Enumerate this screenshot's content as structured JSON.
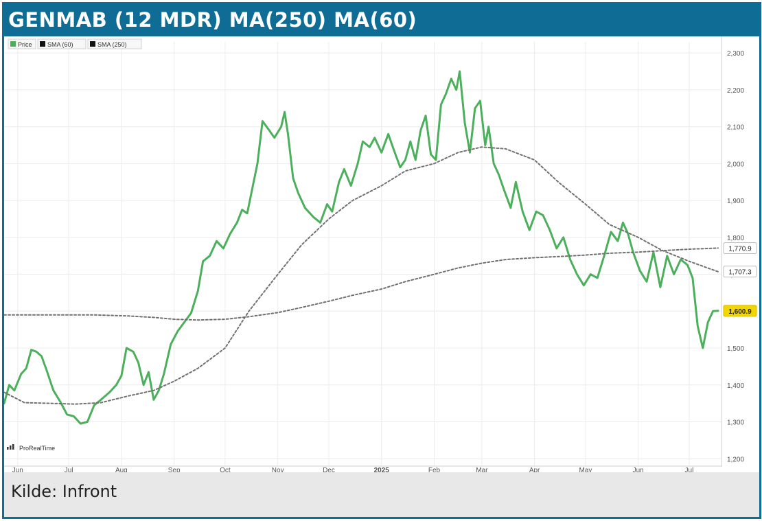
{
  "header": {
    "title": "GENMAB (12 MDR) MA(250) MA(60)"
  },
  "footer": {
    "source": "Kilde: Infront"
  },
  "watermark": {
    "text": "ProRealTime"
  },
  "colors": {
    "frame": "#0f6d95",
    "price": "#4caf5c",
    "sma": "#707070",
    "last_label_bg": "#f2d600"
  },
  "chart_data": {
    "type": "line",
    "title": "GENMAB (12 MDR) MA(250) MA(60)",
    "xlabel": "",
    "ylabel": "",
    "x_range": [
      "2024-05-24",
      "2025-07-20"
    ],
    "ylim": [
      1180,
      2330
    ],
    "y_ticks": [
      1200,
      1300,
      1400,
      1500,
      1600,
      1700,
      1800,
      1900,
      2000,
      2100,
      2200,
      2300
    ],
    "y_tick_labels": [
      "1,200",
      "1,300",
      "1,400",
      "1,500",
      "1,600",
      "1,700",
      "1,800",
      "1,900",
      "2,000",
      "2,100",
      "2,200",
      "2,300"
    ],
    "x_ticks": [
      {
        "date": "2024-06-01",
        "label": "Jun"
      },
      {
        "date": "2024-07-01",
        "label": "Jul"
      },
      {
        "date": "2024-08-01",
        "label": "Aug"
      },
      {
        "date": "2024-09-01",
        "label": "Sep"
      },
      {
        "date": "2024-10-01",
        "label": "Oct"
      },
      {
        "date": "2024-11-01",
        "label": "Nov"
      },
      {
        "date": "2024-12-01",
        "label": "Dec"
      },
      {
        "date": "2025-01-01",
        "label": "2025"
      },
      {
        "date": "2025-02-01",
        "label": "Feb"
      },
      {
        "date": "2025-03-01",
        "label": "Mar"
      },
      {
        "date": "2025-04-01",
        "label": "Apr"
      },
      {
        "date": "2025-05-01",
        "label": "May"
      },
      {
        "date": "2025-06-01",
        "label": "Jun"
      },
      {
        "date": "2025-07-01",
        "label": "Jul"
      }
    ],
    "legend": {
      "position": "top-left",
      "entries": [
        {
          "label": "Price",
          "color": "#4caf5c"
        },
        {
          "label": "SMA (60)",
          "color": "#111111"
        },
        {
          "label": "SMA (250)",
          "color": "#111111"
        }
      ]
    },
    "last_value_labels": [
      {
        "text": "1,770.9",
        "value": 1770.9,
        "highlight": false
      },
      {
        "text": "1,707.3",
        "value": 1707.3,
        "highlight": false
      },
      {
        "text": "1,600.9",
        "value": 1600.9,
        "highlight": true
      }
    ],
    "grid": true,
    "series": [
      {
        "name": "Price",
        "color": "#4caf5c",
        "style": "solid",
        "points": [
          [
            "2024-05-24",
            1350
          ],
          [
            "2024-05-27",
            1400
          ],
          [
            "2024-05-30",
            1385
          ],
          [
            "2024-06-03",
            1430
          ],
          [
            "2024-06-06",
            1445
          ],
          [
            "2024-06-09",
            1495
          ],
          [
            "2024-06-12",
            1490
          ],
          [
            "2024-06-15",
            1478
          ],
          [
            "2024-06-18",
            1440
          ],
          [
            "2024-06-22",
            1385
          ],
          [
            "2024-06-26",
            1355
          ],
          [
            "2024-06-30",
            1320
          ],
          [
            "2024-07-04",
            1315
          ],
          [
            "2024-07-08",
            1295
          ],
          [
            "2024-07-12",
            1300
          ],
          [
            "2024-07-16",
            1345
          ],
          [
            "2024-07-20",
            1360
          ],
          [
            "2024-07-25",
            1380
          ],
          [
            "2024-07-29",
            1400
          ],
          [
            "2024-08-01",
            1425
          ],
          [
            "2024-08-04",
            1500
          ],
          [
            "2024-08-08",
            1490
          ],
          [
            "2024-08-11",
            1460
          ],
          [
            "2024-08-14",
            1400
          ],
          [
            "2024-08-17",
            1435
          ],
          [
            "2024-08-20",
            1360
          ],
          [
            "2024-08-23",
            1385
          ],
          [
            "2024-08-26",
            1430
          ],
          [
            "2024-08-30",
            1510
          ],
          [
            "2024-09-03",
            1545
          ],
          [
            "2024-09-07",
            1570
          ],
          [
            "2024-09-11",
            1595
          ],
          [
            "2024-09-15",
            1655
          ],
          [
            "2024-09-18",
            1735
          ],
          [
            "2024-09-22",
            1750
          ],
          [
            "2024-09-26",
            1790
          ],
          [
            "2024-09-30",
            1770
          ],
          [
            "2024-10-04",
            1810
          ],
          [
            "2024-10-08",
            1840
          ],
          [
            "2024-10-11",
            1875
          ],
          [
            "2024-10-14",
            1865
          ],
          [
            "2024-10-18",
            1955
          ],
          [
            "2024-10-20",
            2000
          ],
          [
            "2024-10-23",
            2115
          ],
          [
            "2024-10-27",
            2090
          ],
          [
            "2024-10-30",
            2070
          ],
          [
            "2024-11-03",
            2100
          ],
          [
            "2024-11-05",
            2140
          ],
          [
            "2024-11-07",
            2080
          ],
          [
            "2024-11-10",
            1960
          ],
          [
            "2024-11-13",
            1920
          ],
          [
            "2024-11-17",
            1880
          ],
          [
            "2024-11-22",
            1855
          ],
          [
            "2024-11-26",
            1840
          ],
          [
            "2024-11-30",
            1890
          ],
          [
            "2024-12-03",
            1870
          ],
          [
            "2024-12-07",
            1950
          ],
          [
            "2024-12-10",
            1985
          ],
          [
            "2024-12-14",
            1940
          ],
          [
            "2024-12-18",
            2000
          ],
          [
            "2024-12-21",
            2060
          ],
          [
            "2024-12-25",
            2045
          ],
          [
            "2024-12-28",
            2070
          ],
          [
            "2025-01-01",
            2030
          ],
          [
            "2025-01-05",
            2080
          ],
          [
            "2025-01-08",
            2040
          ],
          [
            "2025-01-12",
            1990
          ],
          [
            "2025-01-15",
            2010
          ],
          [
            "2025-01-18",
            2060
          ],
          [
            "2025-01-21",
            2010
          ],
          [
            "2025-01-24",
            2090
          ],
          [
            "2025-01-27",
            2130
          ],
          [
            "2025-01-30",
            2025
          ],
          [
            "2025-02-02",
            2010
          ],
          [
            "2025-02-05",
            2160
          ],
          [
            "2025-02-08",
            2190
          ],
          [
            "2025-02-11",
            2230
          ],
          [
            "2025-02-14",
            2200
          ],
          [
            "2025-02-16",
            2250
          ],
          [
            "2025-02-19",
            2110
          ],
          [
            "2025-02-22",
            2030
          ],
          [
            "2025-02-25",
            2150
          ],
          [
            "2025-02-28",
            2170
          ],
          [
            "2025-03-03",
            2050
          ],
          [
            "2025-03-05",
            2100
          ],
          [
            "2025-03-08",
            2000
          ],
          [
            "2025-03-11",
            1970
          ],
          [
            "2025-03-14",
            1930
          ],
          [
            "2025-03-18",
            1880
          ],
          [
            "2025-03-21",
            1950
          ],
          [
            "2025-03-25",
            1870
          ],
          [
            "2025-03-29",
            1820
          ],
          [
            "2025-04-02",
            1870
          ],
          [
            "2025-04-06",
            1860
          ],
          [
            "2025-04-10",
            1820
          ],
          [
            "2025-04-14",
            1770
          ],
          [
            "2025-04-18",
            1800
          ],
          [
            "2025-04-22",
            1740
          ],
          [
            "2025-04-26",
            1700
          ],
          [
            "2025-04-30",
            1670
          ],
          [
            "2025-05-04",
            1700
          ],
          [
            "2025-05-08",
            1690
          ],
          [
            "2025-05-12",
            1750
          ],
          [
            "2025-05-16",
            1815
          ],
          [
            "2025-05-20",
            1790
          ],
          [
            "2025-05-23",
            1840
          ],
          [
            "2025-05-26",
            1810
          ],
          [
            "2025-05-29",
            1760
          ],
          [
            "2025-06-02",
            1710
          ],
          [
            "2025-06-06",
            1680
          ],
          [
            "2025-06-10",
            1760
          ],
          [
            "2025-06-14",
            1665
          ],
          [
            "2025-06-18",
            1750
          ],
          [
            "2025-06-22",
            1700
          ],
          [
            "2025-06-26",
            1740
          ],
          [
            "2025-06-30",
            1725
          ],
          [
            "2025-07-03",
            1690
          ],
          [
            "2025-07-06",
            1560
          ],
          [
            "2025-07-09",
            1500
          ],
          [
            "2025-07-12",
            1570
          ],
          [
            "2025-07-15",
            1600
          ],
          [
            "2025-07-18",
            1601
          ]
        ]
      },
      {
        "name": "SMA (60)",
        "color": "#707070",
        "style": "dashed",
        "points": [
          [
            "2024-05-24",
            1380
          ],
          [
            "2024-06-05",
            1352
          ],
          [
            "2024-06-20",
            1350
          ],
          [
            "2024-07-05",
            1348
          ],
          [
            "2024-07-20",
            1352
          ],
          [
            "2024-08-05",
            1370
          ],
          [
            "2024-08-20",
            1385
          ],
          [
            "2024-09-01",
            1410
          ],
          [
            "2024-09-15",
            1445
          ],
          [
            "2024-10-01",
            1500
          ],
          [
            "2024-10-15",
            1600
          ],
          [
            "2024-11-01",
            1700
          ],
          [
            "2024-11-15",
            1780
          ],
          [
            "2024-12-01",
            1850
          ],
          [
            "2024-12-15",
            1900
          ],
          [
            "2025-01-01",
            1940
          ],
          [
            "2025-01-15",
            1980
          ],
          [
            "2025-02-01",
            2000
          ],
          [
            "2025-02-15",
            2030
          ],
          [
            "2025-03-01",
            2045
          ],
          [
            "2025-03-15",
            2040
          ],
          [
            "2025-04-01",
            2010
          ],
          [
            "2025-04-15",
            1950
          ],
          [
            "2025-05-01",
            1890
          ],
          [
            "2025-05-15",
            1835
          ],
          [
            "2025-06-01",
            1800
          ],
          [
            "2025-06-15",
            1765
          ],
          [
            "2025-07-01",
            1735
          ],
          [
            "2025-07-18",
            1707
          ]
        ]
      },
      {
        "name": "SMA (250)",
        "color": "#707070",
        "style": "dashed",
        "points": [
          [
            "2024-05-24",
            1590
          ],
          [
            "2024-06-15",
            1590
          ],
          [
            "2024-07-15",
            1590
          ],
          [
            "2024-08-05",
            1587
          ],
          [
            "2024-08-20",
            1583
          ],
          [
            "2024-09-01",
            1578
          ],
          [
            "2024-09-15",
            1576
          ],
          [
            "2024-10-01",
            1578
          ],
          [
            "2024-10-15",
            1585
          ],
          [
            "2024-11-01",
            1596
          ],
          [
            "2024-11-15",
            1610
          ],
          [
            "2024-12-01",
            1627
          ],
          [
            "2024-12-15",
            1643
          ],
          [
            "2025-01-01",
            1660
          ],
          [
            "2025-01-15",
            1680
          ],
          [
            "2025-02-01",
            1700
          ],
          [
            "2025-02-15",
            1717
          ],
          [
            "2025-03-01",
            1730
          ],
          [
            "2025-03-15",
            1740
          ],
          [
            "2025-04-01",
            1745
          ],
          [
            "2025-04-15",
            1748
          ],
          [
            "2025-05-01",
            1752
          ],
          [
            "2025-05-15",
            1757
          ],
          [
            "2025-06-01",
            1760
          ],
          [
            "2025-06-15",
            1764
          ],
          [
            "2025-07-01",
            1768
          ],
          [
            "2025-07-18",
            1771
          ]
        ]
      }
    ]
  }
}
